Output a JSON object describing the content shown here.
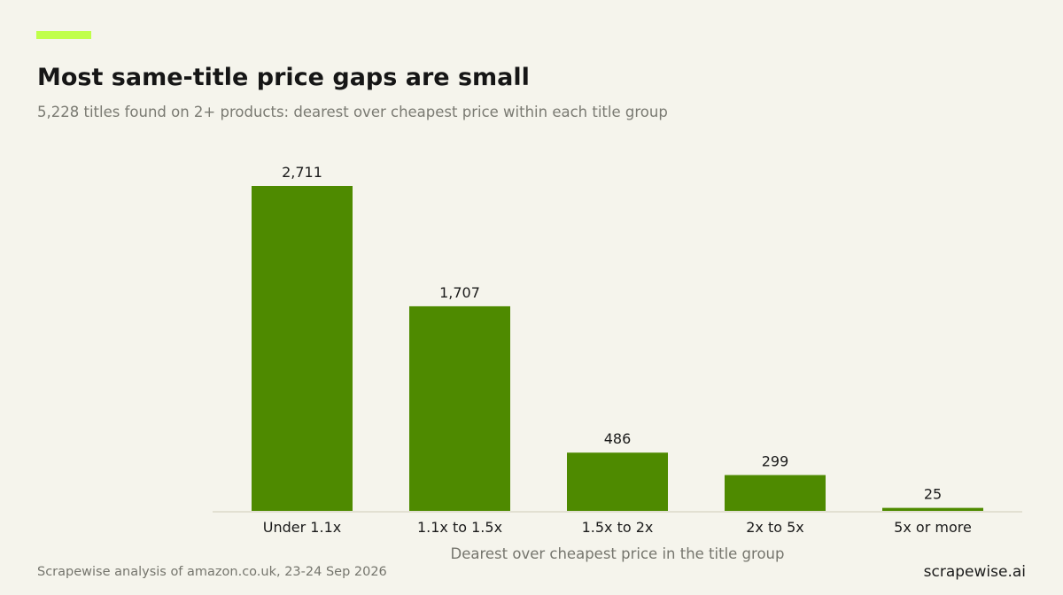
{
  "header": {
    "title": "Most same-title price gaps are small",
    "subtitle": "5,228 titles found on 2+ products: dearest over cheapest price within each title group"
  },
  "footer": {
    "source": "Scrapewise analysis of amazon.co.uk, 23-24 Sep 2026",
    "brand": "scrapewise.ai"
  },
  "colors": {
    "bar": "#4e8a00",
    "accent": "#c0ff4a",
    "background": "#f5f4ec",
    "axis": "#e2e0d2"
  },
  "chart_data": {
    "type": "bar",
    "title": "Most same-title price gaps are small",
    "subtitle": "5,228 titles found on 2+ products: dearest over cheapest price within each title group",
    "xlabel": "Dearest over cheapest price in the title group",
    "ylabel": "",
    "categories": [
      "Under 1.1x",
      "1.1x to 1.5x",
      "1.5x to 2x",
      "2x to 5x",
      "5x or more"
    ],
    "values": [
      2711,
      1707,
      486,
      299,
      25
    ],
    "value_labels": [
      "2,711",
      "1,707",
      "486",
      "299",
      "25"
    ],
    "ylim": [
      0,
      2711
    ],
    "grid": false,
    "legend": "none"
  }
}
